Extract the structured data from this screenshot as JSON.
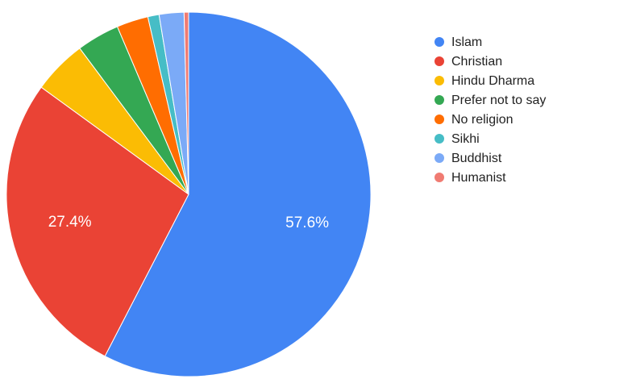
{
  "chart_data": {
    "type": "pie",
    "categories": [
      "Islam",
      "Christian",
      "Hindu Dharma",
      "Prefer not to say",
      "No religion",
      "Sikhi",
      "Buddhist",
      "Humanist"
    ],
    "values": [
      57.6,
      27.4,
      4.8,
      3.8,
      2.8,
      1.0,
      2.2,
      0.4
    ],
    "value_labels": [
      "57.6%",
      "27.4%",
      null,
      null,
      null,
      null,
      null,
      null
    ],
    "colors": [
      "#4285f4",
      "#ea4335",
      "#fbbc04",
      "#34a853",
      "#ff6d01",
      "#46bdc6",
      "#7baaf7",
      "#f07b72"
    ],
    "legend": "right"
  }
}
